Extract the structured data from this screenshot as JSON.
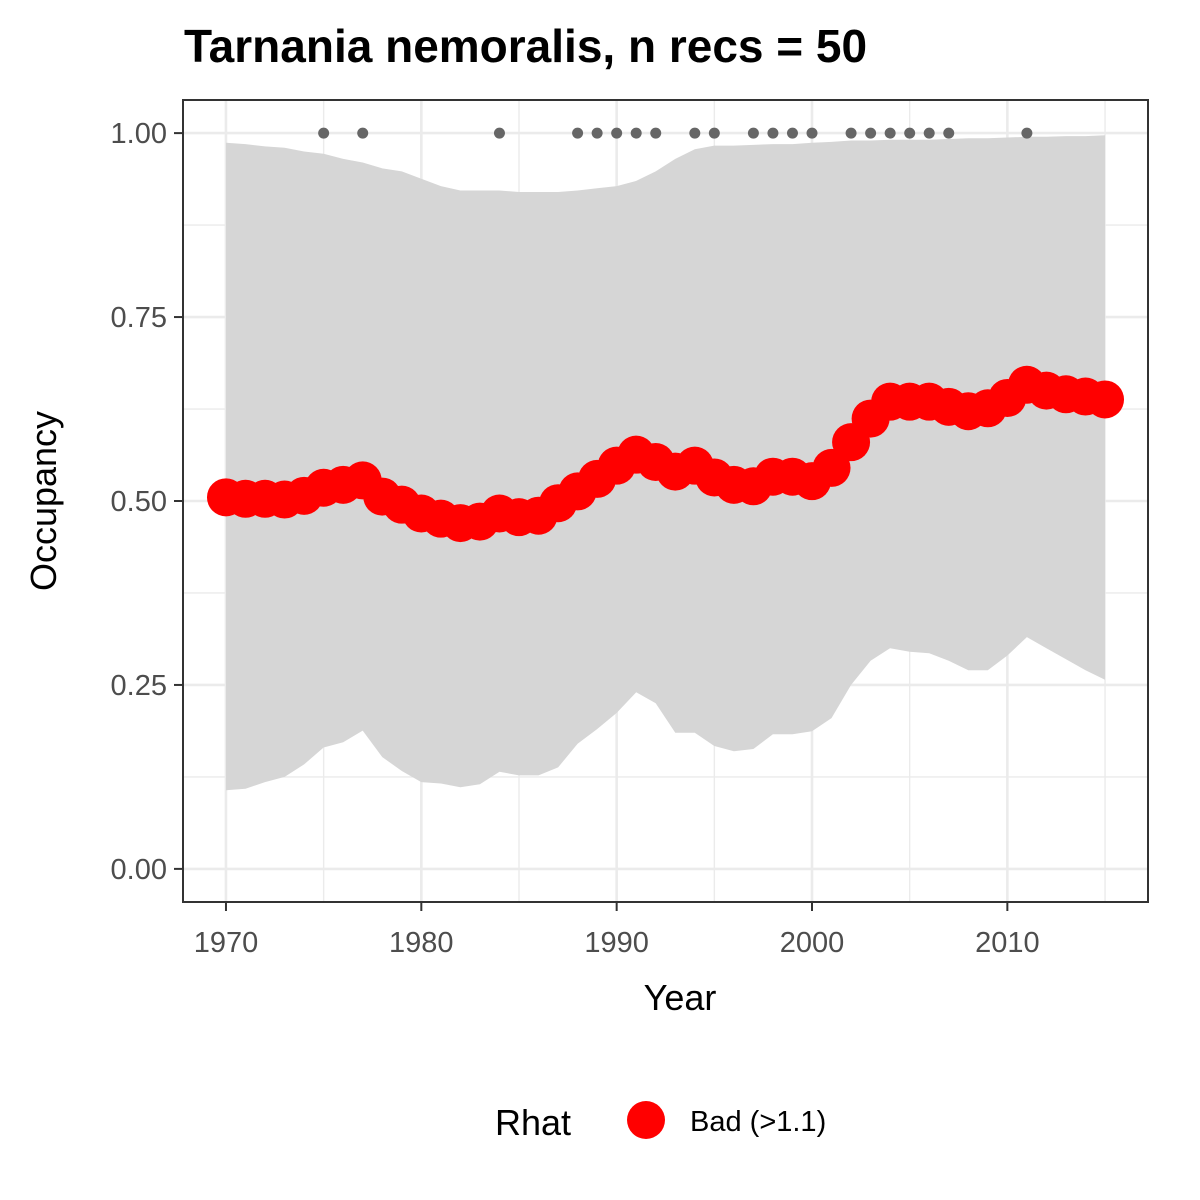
{
  "chart_data": {
    "type": "line",
    "title": "Tarnania nemoralis, n recs = 50",
    "xlabel": "Year",
    "ylabel": "Occupancy",
    "xlim": [
      1967.8,
      1717.2
    ],
    "ylim": [
      -0.045,
      1.045
    ],
    "x_ticks": [
      1970,
      1980,
      1990,
      2000,
      2010
    ],
    "x_tick_labels": [
      "1970",
      "1980",
      "1990",
      "2000",
      "2010"
    ],
    "y_ticks": [
      0,
      0.25,
      0.5,
      0.75,
      1.0
    ],
    "y_tick_labels": [
      "0.00",
      "0.25",
      "0.50",
      "0.75",
      "1.00"
    ],
    "grid": true,
    "legend": {
      "title": "Rhat",
      "position": "bottom",
      "entries": [
        {
          "label": "Bad (>1.1)",
          "color": "#ff0000"
        }
      ]
    },
    "colors": {
      "mean": "#ff0000",
      "band": "#d6d6d6",
      "records": "#666666"
    },
    "years": [
      1970,
      1971,
      1972,
      1973,
      1974,
      1975,
      1976,
      1977,
      1978,
      1979,
      1980,
      1981,
      1982,
      1983,
      1984,
      1985,
      1986,
      1987,
      1988,
      1989,
      1990,
      1991,
      1992,
      1993,
      1994,
      1995,
      1996,
      1997,
      1998,
      1999,
      2000,
      2001,
      2002,
      2003,
      2004,
      2005,
      2006,
      2007,
      2008,
      2009,
      2010,
      2011,
      2012,
      2013,
      2014,
      2015
    ],
    "series": [
      {
        "name": "Bad (>1.1)",
        "values": [
          0.505,
          0.503,
          0.503,
          0.502,
          0.507,
          0.518,
          0.522,
          0.528,
          0.506,
          0.495,
          0.483,
          0.476,
          0.47,
          0.472,
          0.483,
          0.478,
          0.48,
          0.497,
          0.513,
          0.53,
          0.548,
          0.563,
          0.553,
          0.54,
          0.548,
          0.532,
          0.522,
          0.52,
          0.533,
          0.533,
          0.527,
          0.545,
          0.58,
          0.612,
          0.635,
          0.635,
          0.635,
          0.628,
          0.622,
          0.626,
          0.64,
          0.658,
          0.65,
          0.645,
          0.642,
          0.638
        ]
      }
    ],
    "band_upper": [
      0.987,
      0.985,
      0.982,
      0.98,
      0.975,
      0.972,
      0.965,
      0.96,
      0.952,
      0.948,
      0.938,
      0.928,
      0.922,
      0.922,
      0.922,
      0.92,
      0.92,
      0.92,
      0.922,
      0.925,
      0.928,
      0.935,
      0.948,
      0.965,
      0.978,
      0.983,
      0.983,
      0.984,
      0.985,
      0.985,
      0.987,
      0.988,
      0.99,
      0.99,
      0.991,
      0.991,
      0.991,
      0.992,
      0.993,
      0.993,
      0.994,
      0.995,
      0.995,
      0.996,
      0.996,
      0.997
    ],
    "band_lower": [
      0.107,
      0.109,
      0.118,
      0.125,
      0.142,
      0.165,
      0.172,
      0.188,
      0.152,
      0.133,
      0.118,
      0.116,
      0.111,
      0.115,
      0.132,
      0.127,
      0.127,
      0.138,
      0.17,
      0.19,
      0.212,
      0.24,
      0.225,
      0.185,
      0.185,
      0.167,
      0.16,
      0.163,
      0.183,
      0.183,
      0.187,
      0.205,
      0.25,
      0.283,
      0.3,
      0.295,
      0.293,
      0.283,
      0.27,
      0.27,
      0.29,
      0.315,
      0.3,
      0.285,
      0.27,
      0.257
    ],
    "record_years": [
      1975,
      1977,
      1984,
      1988,
      1989,
      1990,
      1991,
      1992,
      1994,
      1995,
      1997,
      1998,
      1999,
      2000,
      2002,
      2003,
      2004,
      2005,
      2006,
      2007,
      2011
    ],
    "record_value": 1.0
  }
}
